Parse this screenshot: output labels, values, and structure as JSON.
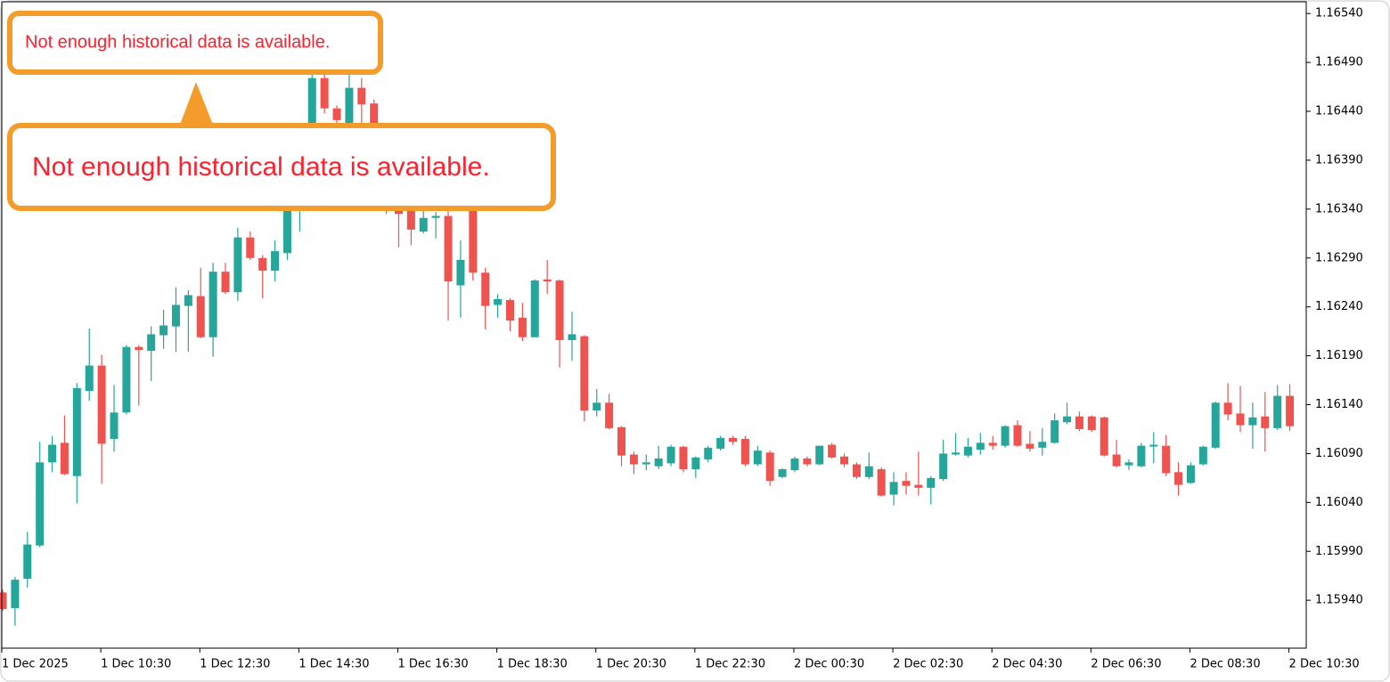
{
  "chart_data": {
    "type": "candlestick",
    "up_color": "#26a69a",
    "down_color": "#ef5350",
    "ylim": [
      1.15891,
      1.16552
    ],
    "yticks": [
      {
        "value": 1.1594,
        "label": "1.15940"
      },
      {
        "value": 1.1599,
        "label": "1.15990"
      },
      {
        "value": 1.1604,
        "label": "1.16040"
      },
      {
        "value": 1.1609,
        "label": "1.16090"
      },
      {
        "value": 1.1614,
        "label": "1.16140"
      },
      {
        "value": 1.1619,
        "label": "1.16190"
      },
      {
        "value": 1.1624,
        "label": "1.16240"
      },
      {
        "value": 1.1629,
        "label": "1.16290"
      },
      {
        "value": 1.1634,
        "label": "1.16340"
      },
      {
        "value": 1.1639,
        "label": "1.16390"
      },
      {
        "value": 1.1644,
        "label": "1.16440"
      },
      {
        "value": 1.1649,
        "label": "1.16490"
      },
      {
        "value": 1.1654,
        "label": "1.16540"
      }
    ],
    "categories": [
      "1 Dec 2025",
      null,
      null,
      null,
      null,
      null,
      null,
      null,
      "1 Dec 10:30",
      null,
      null,
      null,
      null,
      null,
      null,
      null,
      "1 Dec 12:30",
      null,
      null,
      null,
      null,
      null,
      null,
      null,
      "1 Dec 14:30",
      null,
      null,
      null,
      null,
      null,
      null,
      null,
      "1 Dec 16:30",
      null,
      null,
      null,
      null,
      null,
      null,
      null,
      "1 Dec 18:30",
      null,
      null,
      null,
      null,
      null,
      null,
      null,
      "1 Dec 20:30",
      null,
      null,
      null,
      null,
      null,
      null,
      null,
      "1 Dec 22:30",
      null,
      null,
      null,
      null,
      null,
      null,
      null,
      "2 Dec 00:30",
      null,
      null,
      null,
      null,
      null,
      null,
      null,
      "2 Dec 02:30",
      null,
      null,
      null,
      null,
      null,
      null,
      null,
      "2 Dec 04:30",
      null,
      null,
      null,
      null,
      null,
      null,
      null,
      "2 Dec 06:30",
      null,
      null,
      null,
      null,
      null,
      null,
      null,
      "2 Dec 08:30",
      null,
      null,
      null,
      null,
      null,
      null,
      null,
      "2 Dec 10:30"
    ],
    "open": [
      1.15948,
      1.15932,
      1.15962,
      1.15996,
      1.16081,
      1.16101,
      1.16067,
      1.16154,
      1.1618,
      1.16105,
      1.16132,
      1.16199,
      1.16195,
      1.16211,
      1.1622,
      1.16241,
      1.16251,
      1.16209,
      1.16276,
      1.16255,
      1.16311,
      1.1629,
      1.16277,
      1.16295,
      1.1634,
      1.16394,
      1.16474,
      1.16443,
      1.16426,
      1.16464,
      1.16448,
      1.1639,
      1.16372,
      1.16338,
      1.16317,
      1.16331,
      1.16333,
      1.16262,
      1.16346,
      1.16275,
      1.16242,
      1.16247,
      1.16229,
      1.16209,
      1.16268,
      1.16267,
      1.16206,
      1.1621,
      1.16134,
      1.16142,
      1.16117,
      1.16089,
      1.16079,
      1.16077,
      1.1608,
      1.16097,
      1.16074,
      1.16084,
      1.16095,
      1.16106,
      1.16105,
      1.16079,
      1.16091,
      1.16066,
      1.16073,
      1.16085,
      1.16079,
      1.16099,
      1.16087,
      1.16079,
      1.16066,
      1.16074,
      1.16048,
      1.16062,
      1.16058,
      1.16055,
      1.16064,
      1.16089,
      1.16088,
      1.16094,
      1.16101,
      1.16098,
      1.16119,
      1.161,
      1.16096,
      1.16101,
      1.16122,
      1.16128,
      1.16128,
      1.16127,
      1.16089,
      1.16078,
      1.16077,
      1.16098,
      1.16098,
      1.16071,
      1.1606,
      1.16079,
      1.16096,
      1.16142,
      1.16131,
      1.16119,
      1.16128,
      1.16116,
      1.16149
    ],
    "high": [
      1.15951,
      1.15964,
      1.1601,
      1.16102,
      1.16108,
      1.16129,
      1.16162,
      1.16218,
      1.16191,
      1.1616,
      1.16201,
      1.16201,
      1.1622,
      1.16237,
      1.1626,
      1.16257,
      1.1628,
      1.16285,
      1.16285,
      1.16321,
      1.16317,
      1.16293,
      1.16308,
      1.16353,
      1.16394,
      1.16481,
      1.16492,
      1.16446,
      1.16479,
      1.16474,
      1.16452,
      1.16394,
      1.16381,
      1.16349,
      1.1634,
      1.16337,
      1.16338,
      1.16308,
      1.16401,
      1.1628,
      1.16253,
      1.16249,
      1.16244,
      1.16268,
      1.16288,
      1.16268,
      1.16235,
      1.16211,
      1.16156,
      1.16151,
      1.16118,
      1.16092,
      1.16089,
      1.16098,
      1.16099,
      1.16098,
      1.16087,
      1.16098,
      1.16108,
      1.16108,
      1.16108,
      1.16098,
      1.16093,
      1.16075,
      1.16087,
      1.16087,
      1.16098,
      1.16101,
      1.1609,
      1.16081,
      1.16091,
      1.16076,
      1.16071,
      1.16071,
      1.16092,
      1.16067,
      1.16104,
      1.16111,
      1.16106,
      1.16111,
      1.16108,
      1.16119,
      1.16124,
      1.16113,
      1.16116,
      1.16131,
      1.16142,
      1.16133,
      1.16129,
      1.16128,
      1.16104,
      1.16084,
      1.16101,
      1.16112,
      1.16109,
      1.16081,
      1.16081,
      1.16098,
      1.16143,
      1.16162,
      1.16159,
      1.16142,
      1.16153,
      1.1616,
      1.16161
    ],
    "low": [
      1.15929,
      1.15914,
      1.15953,
      1.15994,
      1.16071,
      1.16068,
      1.16039,
      1.16144,
      1.16059,
      1.16092,
      1.1613,
      1.16139,
      1.16164,
      1.16197,
      1.16194,
      1.16194,
      1.16208,
      1.16189,
      1.16253,
      1.16246,
      1.16288,
      1.16249,
      1.16266,
      1.16288,
      1.16317,
      1.1639,
      1.16438,
      1.16426,
      1.16417,
      1.16426,
      1.16381,
      1.16335,
      1.16301,
      1.16303,
      1.16315,
      1.1631,
      1.16226,
      1.16229,
      1.16267,
      1.16217,
      1.16229,
      1.16215,
      1.16205,
      1.16209,
      1.16253,
      1.16178,
      1.16185,
      1.16123,
      1.16128,
      1.16115,
      1.16077,
      1.16069,
      1.16073,
      1.16074,
      1.16077,
      1.16071,
      1.16065,
      1.16081,
      1.16093,
      1.16099,
      1.16077,
      1.16077,
      1.16057,
      1.16065,
      1.16071,
      1.16077,
      1.16078,
      1.16085,
      1.16076,
      1.16064,
      1.16064,
      1.16046,
      1.16037,
      1.16048,
      1.16047,
      1.16038,
      1.16062,
      1.16088,
      1.16086,
      1.16089,
      1.16094,
      1.16096,
      1.16097,
      1.16092,
      1.16088,
      1.161,
      1.1612,
      1.16113,
      1.16112,
      1.16087,
      1.16076,
      1.16073,
      1.16076,
      1.1608,
      1.16067,
      1.16047,
      1.16059,
      1.16078,
      1.16095,
      1.16124,
      1.16112,
      1.16095,
      1.16092,
      1.16114,
      1.16113
    ],
    "close": [
      1.15931,
      1.15961,
      1.15997,
      1.16081,
      1.16099,
      1.16069,
      1.16157,
      1.1618,
      1.161,
      1.16132,
      1.16199,
      1.16196,
      1.16212,
      1.16221,
      1.16242,
      1.16252,
      1.16209,
      1.16276,
      1.16255,
      1.16311,
      1.1629,
      1.16277,
      1.16297,
      1.16344,
      1.1639,
      1.16474,
      1.16443,
      1.16431,
      1.16464,
      1.16447,
      1.1639,
      1.1634,
      1.16335,
      1.16319,
      1.16331,
      1.16333,
      1.16266,
      1.16288,
      1.16275,
      1.16241,
      1.16248,
      1.16226,
      1.16209,
      1.16267,
      1.16266,
      1.16206,
      1.16212,
      1.16134,
      1.16142,
      1.16116,
      1.16088,
      1.16079,
      1.16081,
      1.16085,
      1.16097,
      1.16074,
      1.16086,
      1.16096,
      1.16106,
      1.16102,
      1.16079,
      1.16093,
      1.16062,
      1.16074,
      1.16085,
      1.16079,
      1.16098,
      1.16086,
      1.16079,
      1.16066,
      1.16077,
      1.16047,
      1.16061,
      1.16057,
      1.16055,
      1.16065,
      1.1609,
      1.16091,
      1.16097,
      1.16101,
      1.16098,
      1.16118,
      1.16098,
      1.16095,
      1.16102,
      1.16124,
      1.16128,
      1.16115,
      1.16114,
      1.16088,
      1.16077,
      1.16081,
      1.16098,
      1.16099,
      1.1607,
      1.16058,
      1.16078,
      1.16097,
      1.16142,
      1.1613,
      1.16119,
      1.16127,
      1.16116,
      1.16149,
      1.16118
    ],
    "annotations": [
      "Not enough historical data is available.",
      "Not enough historical data is available."
    ]
  }
}
